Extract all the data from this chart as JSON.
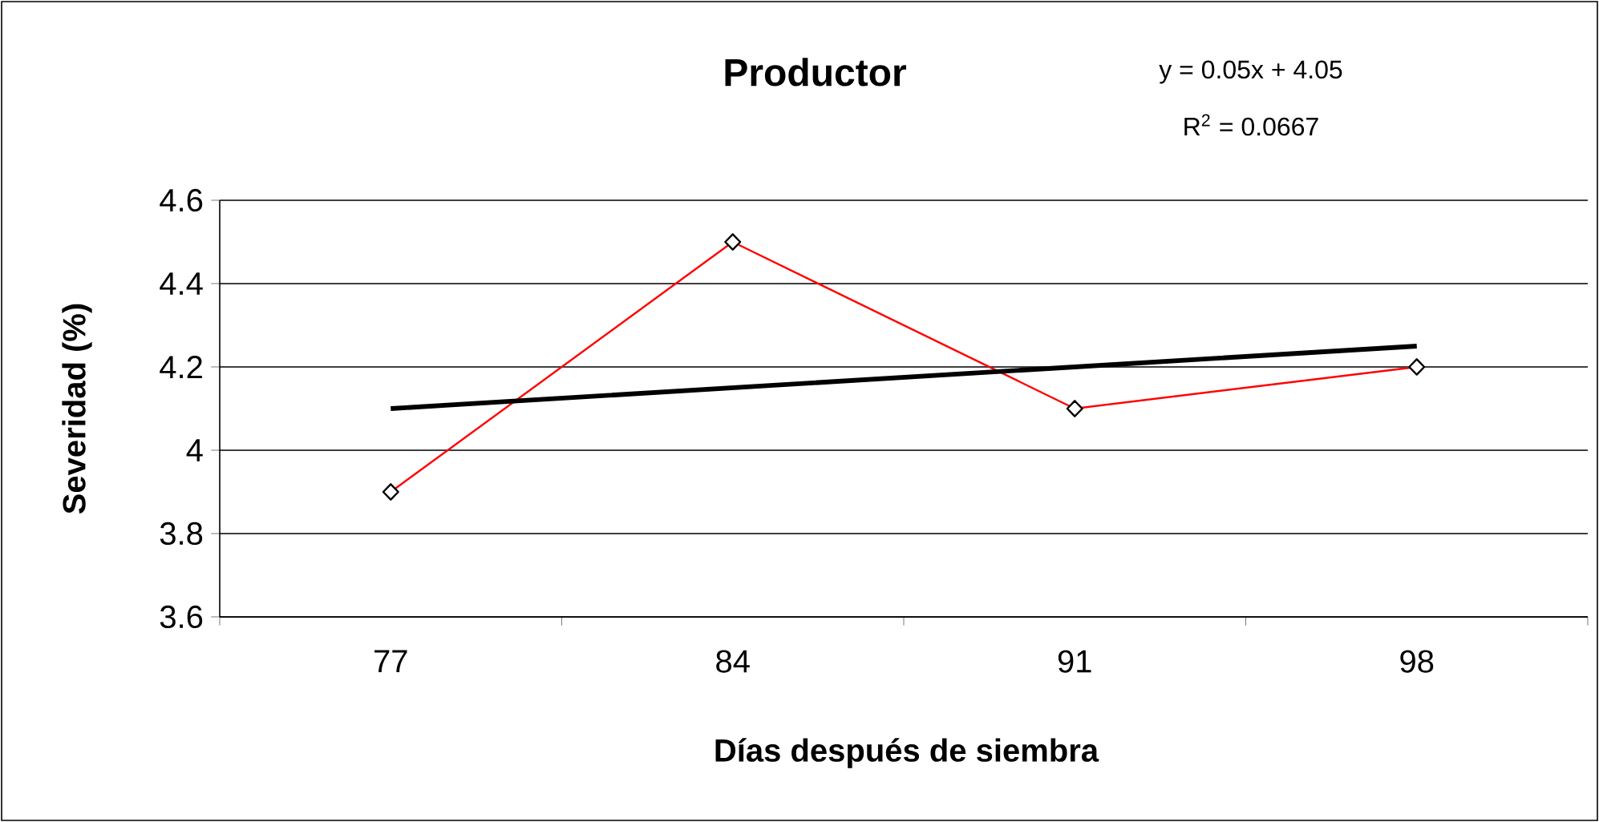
{
  "chart_data": {
    "type": "line",
    "title": "Productor",
    "xlabel": "Días después de siembra",
    "ylabel": "Severidad (%)",
    "annotations": [
      "y = 0.05x + 4.05",
      "R$^{2}$ = 0.0667"
    ],
    "categories": [
      "77",
      "84",
      "91",
      "98"
    ],
    "series": [
      {
        "color": "#ff0000",
        "marker": "diamond",
        "values": [
          3.9,
          4.5,
          4.1,
          4.2
        ]
      },
      {
        "type": "line",
        "color": "#000000",
        "marker": "none",
        "values": [
          4.1,
          4.15,
          4.2,
          4.25
        ]
      }
    ],
    "ylim": [
      3.6,
      4.6
    ],
    "yticks": [
      3.6,
      3.8,
      4,
      4.2,
      4.4,
      4.6
    ],
    "grid": "y"
  }
}
